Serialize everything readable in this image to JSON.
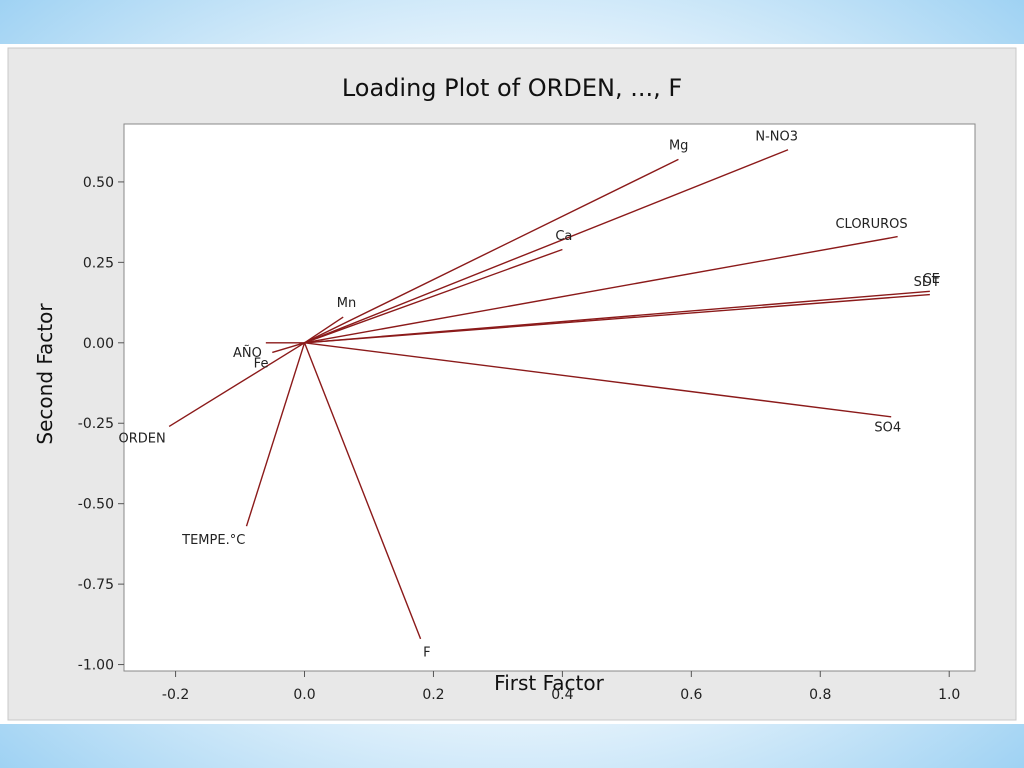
{
  "chart_data": {
    "type": "line",
    "title": "Loading Plot of ORDEN, ..., F",
    "xlabel": "First Factor",
    "ylabel": "Second Factor",
    "xlim": [
      -0.28,
      1.04
    ],
    "ylim": [
      -1.02,
      0.68
    ],
    "x_ticks": [
      -0.2,
      0.0,
      0.2,
      0.4,
      0.6,
      0.8,
      1.0
    ],
    "x_tick_labels": [
      "-0.2",
      "0.0",
      "0.2",
      "0.4",
      "0.6",
      "0.8",
      "1.0"
    ],
    "y_ticks": [
      0.5,
      0.25,
      0.0,
      -0.25,
      -0.5,
      -0.75,
      -1.0
    ],
    "y_tick_labels": [
      "0.50",
      "0.25",
      "0.00",
      "-0.25",
      "-0.50",
      "-0.75",
      "-1.00"
    ],
    "grid": false,
    "line_color": "#8b1a1a",
    "series": [
      {
        "name": "ORDEN",
        "x": [
          0,
          -0.21
        ],
        "y": [
          0,
          -0.26
        ]
      },
      {
        "name": "AÑO",
        "x": [
          0,
          -0.06
        ],
        "y": [
          0,
          0.0
        ]
      },
      {
        "name": "Fe",
        "x": [
          0,
          -0.05
        ],
        "y": [
          0,
          -0.03
        ]
      },
      {
        "name": "Mn",
        "x": [
          0,
          0.06
        ],
        "y": [
          0,
          0.08
        ]
      },
      {
        "name": "Ca",
        "x": [
          0,
          0.4
        ],
        "y": [
          0,
          0.29
        ]
      },
      {
        "name": "Mg",
        "x": [
          0,
          0.58
        ],
        "y": [
          0,
          0.57
        ]
      },
      {
        "name": "N-NO3",
        "x": [
          0,
          0.75
        ],
        "y": [
          0,
          0.6
        ]
      },
      {
        "name": "CLORUROS",
        "x": [
          0,
          0.92
        ],
        "y": [
          0,
          0.33
        ]
      },
      {
        "name": "CE",
        "x": [
          0,
          0.97
        ],
        "y": [
          0,
          0.16
        ]
      },
      {
        "name": "SDT",
        "x": [
          0,
          0.97
        ],
        "y": [
          0,
          0.15
        ]
      },
      {
        "name": "SO4",
        "x": [
          0,
          0.91
        ],
        "y": [
          0,
          -0.23
        ]
      },
      {
        "name": "TEMPE.°C",
        "x": [
          0,
          -0.09
        ],
        "y": [
          0,
          -0.57
        ]
      },
      {
        "name": "F",
        "x": [
          0,
          0.18
        ],
        "y": [
          0,
          -0.92
        ]
      }
    ]
  }
}
